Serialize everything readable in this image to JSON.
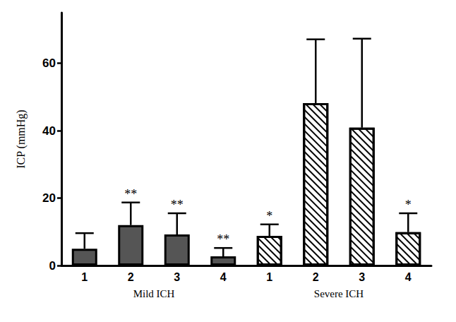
{
  "chart_data": {
    "type": "bar",
    "y_label": "ICP (mmHg)",
    "categories": [
      "1",
      "2",
      "3",
      "4"
    ],
    "groups": [
      {
        "label": "Mild ICH",
        "color": "#555555",
        "values": [
          5.0,
          12.0,
          9.2,
          2.7
        ],
        "errors": [
          4.6,
          6.7,
          6.3,
          2.5
        ],
        "annotations": [
          null,
          "**",
          "**",
          "**"
        ]
      },
      {
        "label": "Severe ICH",
        "color": "#ffffff",
        "values": [
          8.8,
          48.2,
          40.9,
          9.9
        ],
        "errors": [
          3.4,
          18.9,
          26.4,
          5.6
        ],
        "annotations": [
          "*",
          null,
          null,
          "*"
        ]
      }
    ],
    "ylim": [
      0,
      75
    ],
    "yticks": [
      0,
      20,
      40,
      60
    ],
    "grid": false
  }
}
